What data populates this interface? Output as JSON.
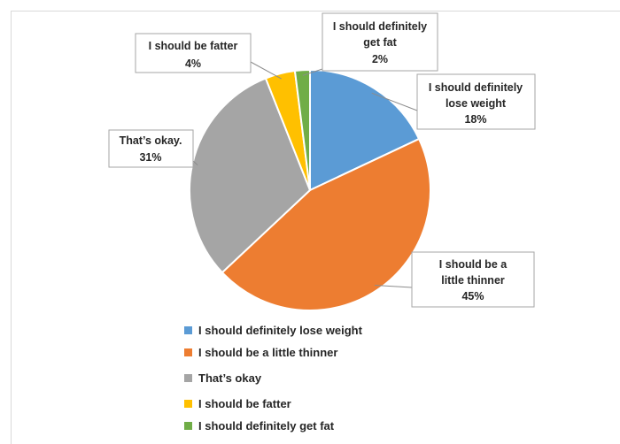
{
  "chart_data": {
    "type": "pie",
    "title": "",
    "categories": [
      "I should definitely lose weight",
      "I should be a little thinner",
      "That’s okay",
      "I should be fatter",
      "I should definitely get fat"
    ],
    "values": [
      18,
      45,
      31,
      4,
      2
    ],
    "unit": "%",
    "colors": [
      "#5b9bd5",
      "#ed7d31",
      "#a5a5a5",
      "#ffc000",
      "#70ad47"
    ],
    "data_labels": [
      {
        "lines": [
          "I should definitely",
          "lose weight"
        ],
        "value": "18%"
      },
      {
        "lines": [
          "I should be a",
          "little thinner"
        ],
        "value": "45%"
      },
      {
        "lines": [
          "That’s okay."
        ],
        "value": "31%"
      },
      {
        "lines": [
          "I should be fatter"
        ],
        "value": "4%"
      },
      {
        "lines": [
          "I should definitely",
          "get fat"
        ],
        "value": "2%"
      }
    ],
    "legend": {
      "position": "bottom",
      "entries": [
        "I should definitely lose weight",
        "I should be a little thinner",
        "That’s okay",
        "I should be fatter",
        "I should definitely get fat"
      ]
    }
  }
}
